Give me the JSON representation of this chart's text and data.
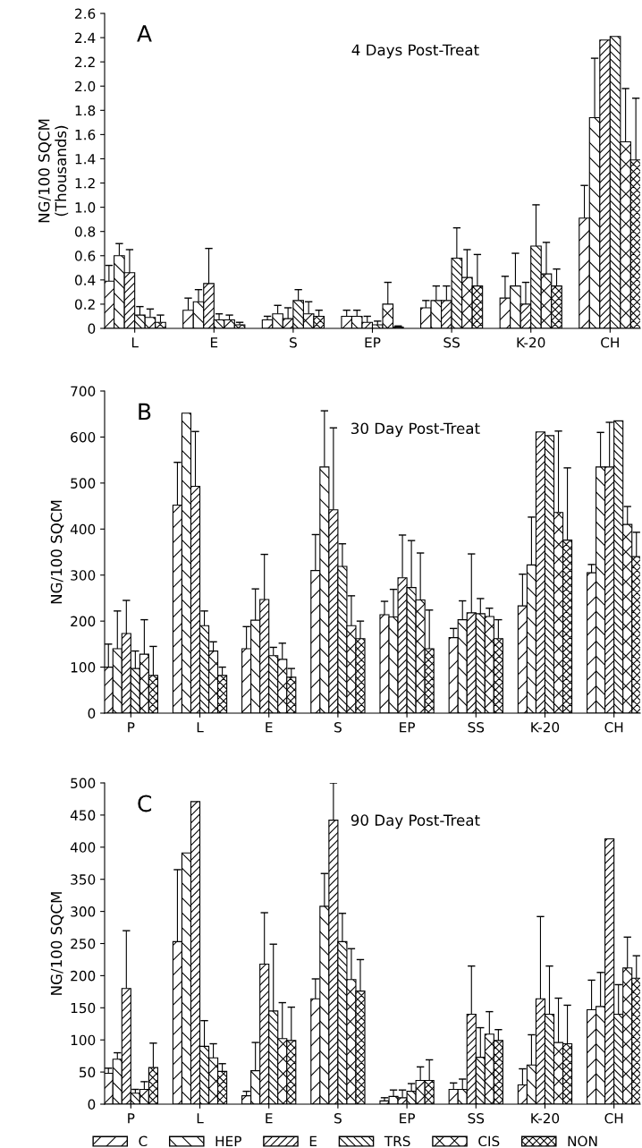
{
  "chart_data": [
    {
      "type": "bar",
      "title": "4 Days Post-Treat",
      "ylabel": "NG/100 SQCM\n(Thousands)",
      "annotations": [
        "A"
      ],
      "categories": [
        "L",
        "E",
        "S",
        "EP",
        "SS",
        "K-20",
        "CH"
      ],
      "ylim": [
        0,
        2.6
      ],
      "yticks": [
        {
          "value": 0,
          "label": "0"
        },
        {
          "value": 0.2,
          "label": "0.2"
        },
        {
          "value": 0.4,
          "label": "0.4"
        },
        {
          "value": 0.6,
          "label": "0.6"
        },
        {
          "value": 0.8,
          "label": "0.8"
        },
        {
          "value": 1.0,
          "label": "1.0"
        },
        {
          "value": 1.2,
          "label": "1.2"
        },
        {
          "value": 1.4,
          "label": "1.4"
        },
        {
          "value": 1.6,
          "label": "1.6"
        },
        {
          "value": 1.8,
          "label": "1.8"
        },
        {
          "value": 2.0,
          "label": "2.0"
        },
        {
          "value": 2.2,
          "label": "2.2"
        },
        {
          "value": 2.4,
          "label": "2.4"
        },
        {
          "value": 2.6,
          "label": "2.6"
        }
      ],
      "series": [
        {
          "color": "#000000",
          "values": [
            0.39,
            0.15,
            0.07,
            0.1,
            0.17,
            0.25,
            0.91
          ],
          "errors": [
            [
              0.39,
              0.52
            ],
            [
              0.15,
              0.25
            ],
            [
              0.07,
              0.1
            ],
            [
              0.1,
              0.15
            ],
            [
              0.17,
              0.23
            ],
            [
              0.25,
              0.43
            ],
            [
              0.91,
              1.18
            ]
          ]
        },
        {
          "color": "#000000",
          "values": [
            0.6,
            0.22,
            0.12,
            0.1,
            0.23,
            0.35,
            1.74
          ],
          "errors": [
            [
              0.6,
              0.7
            ],
            [
              0.22,
              0.32
            ],
            [
              0.12,
              0.19
            ],
            [
              0.1,
              0.15
            ],
            [
              0.23,
              0.35
            ],
            [
              0.35,
              0.62
            ],
            [
              1.74,
              2.23
            ]
          ]
        },
        {
          "color": "#000000",
          "values": [
            0.46,
            0.37,
            0.08,
            0.05,
            0.23,
            0.2,
            2.38
          ],
          "errors": [
            [
              0.46,
              0.65
            ],
            [
              0.37,
              0.66
            ],
            [
              0.08,
              0.17
            ],
            [
              0.05,
              0.1
            ],
            [
              0.23,
              0.35
            ],
            [
              0.2,
              0.38
            ],
            null
          ]
        },
        {
          "color": "#000000",
          "values": [
            0.11,
            0.07,
            0.23,
            0.03,
            0.58,
            0.68,
            2.41
          ],
          "errors": [
            [
              0.11,
              0.18
            ],
            [
              0.07,
              0.12
            ],
            [
              0.23,
              0.32
            ],
            [
              0.03,
              0.06
            ],
            [
              0.58,
              0.83
            ],
            [
              0.68,
              1.02
            ],
            null
          ]
        },
        {
          "color": "#000000",
          "values": [
            0.09,
            0.07,
            0.12,
            0.2,
            0.42,
            0.45,
            1.54
          ],
          "errors": [
            [
              0.09,
              0.16
            ],
            [
              0.07,
              0.11
            ],
            [
              0.12,
              0.22
            ],
            [
              0.2,
              0.38
            ],
            [
              0.42,
              0.65
            ],
            [
              0.45,
              0.71
            ],
            [
              1.54,
              1.98
            ]
          ]
        },
        {
          "color": "#000000",
          "values": [
            0.05,
            0.03,
            0.1,
            0.01,
            0.35,
            0.35,
            1.39
          ],
          "errors": [
            [
              0.05,
              0.11
            ],
            [
              0.03,
              0.05
            ],
            [
              0.1,
              0.15
            ],
            [
              0.01,
              0.02
            ],
            [
              0.35,
              0.61
            ],
            [
              0.35,
              0.49
            ],
            [
              1.39,
              1.9
            ]
          ]
        }
      ]
    },
    {
      "type": "bar",
      "title": "30 Day Post-Treat",
      "ylabel": "NG/100 SQCM",
      "annotations": [
        "B"
      ],
      "categories": [
        "P",
        "L",
        "E",
        "S",
        "EP",
        "SS",
        "K-20",
        "CH"
      ],
      "ylim": [
        0,
        700
      ],
      "yticks": [
        0,
        100,
        200,
        300,
        400,
        500,
        600,
        700
      ],
      "series": [
        {
          "color": "#000000",
          "values": [
            100,
            452,
            140,
            310,
            214,
            164,
            233,
            305
          ],
          "errors": [
            [
              100,
              150
            ],
            [
              452,
              545
            ],
            [
              140,
              188
            ],
            [
              310,
              388
            ],
            [
              214,
              243
            ],
            [
              164,
              184
            ],
            [
              233,
              302
            ],
            [
              305,
              323
            ]
          ]
        },
        {
          "color": "#000000",
          "values": [
            140,
            652,
            202,
            535,
            209,
            203,
            322,
            535
          ],
          "errors": [
            [
              140,
              222
            ],
            null,
            [
              202,
              270
            ],
            [
              535,
              657
            ],
            [
              209,
              269
            ],
            [
              203,
              244
            ],
            [
              322,
              426
            ],
            [
              535,
              610
            ]
          ]
        },
        {
          "color": "#000000",
          "values": [
            173,
            493,
            247,
            442,
            294,
            218,
            611,
            535
          ],
          "errors": [
            [
              173,
              245
            ],
            [
              493,
              612
            ],
            [
              247,
              345
            ],
            [
              442,
              620
            ],
            [
              294,
              387
            ],
            [
              218,
              346
            ],
            null,
            [
              535,
              632
            ]
          ]
        },
        {
          "color": "#000000",
          "values": [
            97,
            190,
            125,
            319,
            273,
            216,
            603,
            635
          ],
          "errors": [
            [
              97,
              135
            ],
            [
              190,
              222
            ],
            [
              125,
              143
            ],
            [
              319,
              368
            ],
            [
              273,
              375
            ],
            [
              216,
              249
            ],
            null,
            null
          ]
        },
        {
          "color": "#000000",
          "values": [
            128,
            135,
            117,
            190,
            246,
            210,
            436,
            410
          ],
          "errors": [
            [
              128,
              203
            ],
            [
              135,
              155
            ],
            [
              117,
              152
            ],
            [
              190,
              255
            ],
            [
              246,
              348
            ],
            [
              210,
              228
            ],
            [
              436,
              613
            ],
            [
              410,
              449
            ]
          ]
        },
        {
          "color": "#000000",
          "values": [
            82,
            82,
            78,
            162,
            140,
            162,
            376,
            340
          ],
          "errors": [
            [
              82,
              145
            ],
            [
              82,
              100
            ],
            [
              78,
              97
            ],
            [
              162,
              200
            ],
            [
              140,
              224
            ],
            [
              162,
              203
            ],
            [
              376,
              533
            ],
            [
              340,
              393
            ]
          ]
        }
      ]
    },
    {
      "type": "bar",
      "title": "90 Day Post-Treat",
      "ylabel": "NG/100 SQCM",
      "annotations": [
        "C"
      ],
      "legend": "bottom",
      "categories": [
        "P",
        "L",
        "E",
        "S",
        "EP",
        "SS",
        "K-20",
        "CH"
      ],
      "ylim": [
        0,
        500
      ],
      "yticks": [
        0,
        50,
        100,
        150,
        200,
        250,
        300,
        350,
        400,
        450,
        500
      ],
      "series": [
        {
          "name": "C",
          "color": "#000000",
          "values": [
            48,
            253,
            13,
            164,
            5,
            23,
            30,
            147
          ],
          "errors": [
            [
              48,
              56
            ],
            [
              253,
              365
            ],
            [
              13,
              20
            ],
            [
              164,
              195
            ],
            [
              5,
              10
            ],
            [
              23,
              33
            ],
            [
              30,
              55
            ],
            [
              147,
              193
            ]
          ]
        },
        {
          "name": "HEP",
          "color": "#000000",
          "values": [
            70,
            391,
            52,
            308,
            12,
            23,
            61,
            152
          ],
          "errors": [
            [
              70,
              80
            ],
            null,
            [
              52,
              96
            ],
            [
              308,
              359
            ],
            [
              12,
              22
            ],
            [
              23,
              39
            ],
            [
              61,
              108
            ],
            [
              152,
              205
            ]
          ]
        },
        {
          "name": "E",
          "color": "#000000",
          "values": [
            180,
            471,
            218,
            442,
            10,
            140,
            164,
            413
          ],
          "errors": [
            [
              180,
              270
            ],
            null,
            [
              218,
              298
            ],
            [
              442,
              500
            ],
            [
              10,
              22
            ],
            [
              140,
              215
            ],
            [
              164,
              292
            ],
            null
          ]
        },
        {
          "name": "TRS",
          "color": "#000000",
          "values": [
            17,
            90,
            145,
            253,
            20,
            73,
            140,
            140
          ],
          "errors": [
            [
              17,
              23
            ],
            [
              90,
              130
            ],
            [
              145,
              249
            ],
            [
              253,
              297
            ],
            [
              20,
              32
            ],
            [
              73,
              119
            ],
            [
              140,
              215
            ],
            [
              140,
              186
            ]
          ]
        },
        {
          "name": "CIS",
          "color": "#000000",
          "values": [
            23,
            72,
            102,
            194,
            37,
            109,
            96,
            212
          ],
          "errors": [
            [
              23,
              35
            ],
            [
              72,
              94
            ],
            [
              102,
              158
            ],
            [
              194,
              242
            ],
            [
              37,
              58
            ],
            [
              109,
              144
            ],
            [
              96,
              165
            ],
            [
              212,
              260
            ]
          ]
        },
        {
          "name": "NON",
          "color": "#000000",
          "values": [
            57,
            51,
            99,
            176,
            37,
            99,
            94,
            196
          ],
          "errors": [
            [
              57,
              95
            ],
            [
              51,
              63
            ],
            [
              99,
              151
            ],
            [
              176,
              225
            ],
            [
              37,
              69
            ],
            [
              99,
              116
            ],
            [
              94,
              154
            ],
            [
              196,
              231
            ]
          ]
        }
      ]
    }
  ]
}
